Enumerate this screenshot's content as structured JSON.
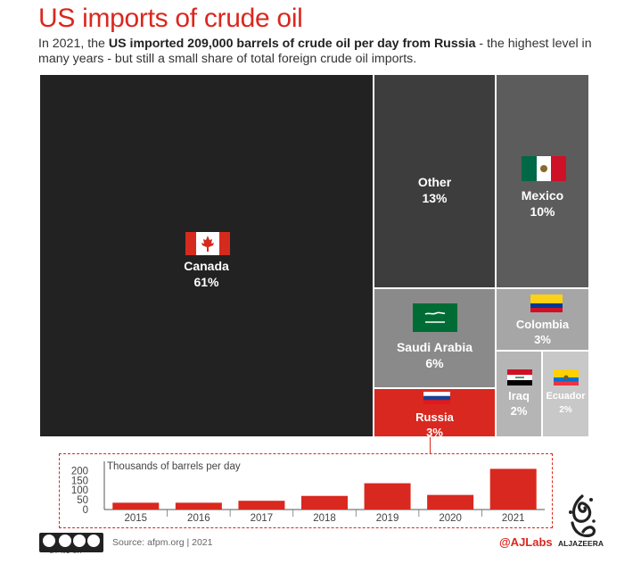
{
  "title": "US imports of crude oil",
  "subtitle": {
    "pre": "In 2021, the ",
    "bold": "US imported 209,000 barrels of crude oil per day from Russia",
    "post": " - the highest level in many years - but still a small share of total foreign crude oil imports."
  },
  "colors": {
    "accent": "#d9281f",
    "canada": "#222222",
    "other": "#3d3d3d",
    "mexico": "#5c5c5c",
    "saudi": "#8a8a8a",
    "colombia": "#a6a6a6",
    "iraq": "#b5b5b5",
    "ecuador": "#c8c8c8",
    "russia": "#d9281f"
  },
  "chart_data": [
    {
      "type": "treemap",
      "title": "US imports of crude oil",
      "items": [
        {
          "name": "Canada",
          "label": "Canada",
          "value_label": "61%",
          "value": 61,
          "flag": "canada-flag-icon"
        },
        {
          "name": "Other",
          "label": "Other",
          "value_label": "13%",
          "value": 13
        },
        {
          "name": "Mexico",
          "label": "Mexico",
          "value_label": "10%",
          "value": 10,
          "flag": "mexico-flag-icon"
        },
        {
          "name": "Saudi Arabia",
          "label": "Saudi Arabia",
          "value_label": "6%",
          "value": 6,
          "flag": "saudi-flag-icon"
        },
        {
          "name": "Colombia",
          "label": "Colombia",
          "value_label": "3%",
          "value": 3,
          "flag": "colombia-flag-icon"
        },
        {
          "name": "Russia",
          "label": "Russia",
          "value_label": "3%",
          "value": 3,
          "flag": "russia-flag-icon"
        },
        {
          "name": "Iraq",
          "label": "Iraq",
          "value_label": "2%",
          "value": 2,
          "flag": "iraq-flag-icon"
        },
        {
          "name": "Ecuador",
          "label": "Ecuador",
          "value_label": "2%",
          "value": 2,
          "flag": "ecuador-flag-icon"
        }
      ]
    },
    {
      "type": "bar",
      "ylabel": "Thousands of barrels per day",
      "categories": [
        "2015",
        "2016",
        "2017",
        "2018",
        "2019",
        "2020",
        "2021"
      ],
      "values": [
        35,
        35,
        45,
        70,
        135,
        75,
        209
      ],
      "yticks": [
        0,
        50,
        100,
        150,
        200
      ],
      "ylim": [
        0,
        220
      ],
      "color": "#d9281f"
    }
  ],
  "footer": {
    "source": "Source: afpm.org | 2021",
    "handle": "@AJLabs",
    "brand": "ALJAZEERA",
    "license": "BY NC SA"
  }
}
